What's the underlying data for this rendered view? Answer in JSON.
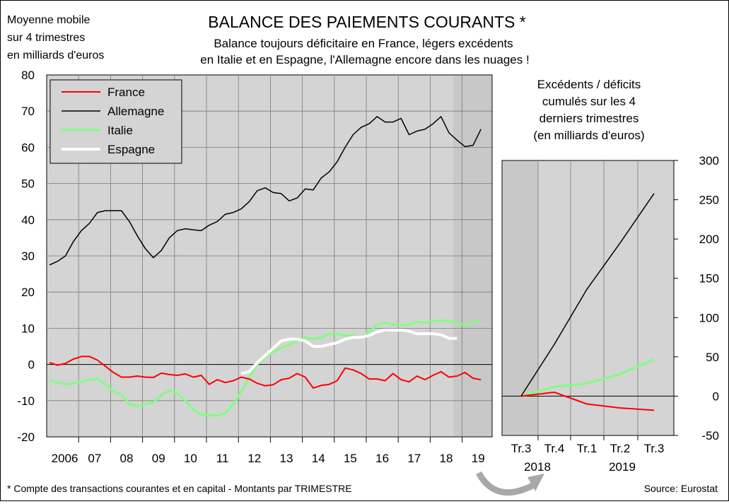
{
  "header": {
    "title": "BALANCE DES PAIEMENTS COURANTS *",
    "subtitle_line1": "Balance toujours déficitaire en France, légers excédents",
    "subtitle_line2": "en Italie et en Espagne, l'Allemagne encore dans les nuages !",
    "unit_line1": "Moyenne mobile",
    "unit_line2": "sur 4 trimestres",
    "unit_line3": "en milliards d'euros"
  },
  "footer": {
    "note": "* Compte des transactions courantes et en capital - Montants par TRIMESTRE",
    "source": "Source: Eurostat"
  },
  "colors": {
    "France": "#ff0000",
    "Allemagne": "#000000",
    "Italie": "#80ff80",
    "Espagne": "#ffffff",
    "plot_bg": "#d4d4d4",
    "plot_bg_shaded": "#c8c8c8"
  },
  "chart_data": [
    {
      "type": "line",
      "ylim": [
        -20,
        80
      ],
      "yticks": [
        "-20",
        "-10",
        "0",
        "10",
        "20",
        "30",
        "40",
        "50",
        "60",
        "70",
        "80"
      ],
      "xticks": [
        "2006",
        "07",
        "08",
        "09",
        "10",
        "11",
        "12",
        "13",
        "14",
        "15",
        "16",
        "17",
        "18",
        "19"
      ],
      "x_start": 2006,
      "legend_position": "top-left",
      "grid": "horizontal",
      "series": [
        {
          "name": "France",
          "values": [
            0.5,
            -0.2,
            0.3,
            1.5,
            2.2,
            2.2,
            1.2,
            -0.5,
            -2.2,
            -3.5,
            -3.5,
            -3.2,
            -3.5,
            -3.6,
            -2.4,
            -2.8,
            -3,
            -2.6,
            -3.5,
            -3,
            -5.5,
            -4.2,
            -5,
            -4.5,
            -3.5,
            -4,
            -5.2,
            -5.9,
            -5.6,
            -4.2,
            -3.8,
            -2.5,
            -3.5,
            -6.5,
            -5.8,
            -5.5,
            -4.5,
            -1,
            -1.5,
            -2.5,
            -4,
            -4,
            -4.5,
            -2.5,
            -4.2,
            -4.8,
            -3.2,
            -4.2,
            -3,
            -2,
            -3.5,
            -3.2,
            -2.2,
            -3.8,
            -4.2
          ]
        },
        {
          "name": "Allemagne",
          "values": [
            27.5,
            28.5,
            30,
            34,
            37,
            39,
            42,
            42.5,
            42.5,
            42.5,
            39.5,
            35.5,
            32,
            29.5,
            31.5,
            35,
            37,
            37.5,
            37.2,
            37,
            38.5,
            39.5,
            41.5,
            42,
            43,
            45,
            48,
            48.8,
            47.5,
            47.2,
            45.2,
            46,
            48.5,
            48.2,
            51.5,
            53.2,
            56,
            60,
            63.5,
            65.5,
            66.5,
            68.5,
            67,
            67,
            68,
            63.5,
            64.5,
            65,
            66.5,
            68.5,
            64,
            62,
            60.2,
            60.5,
            65
          ]
        },
        {
          "name": "Italie",
          "values": [
            -4.5,
            -5,
            -5.5,
            -5.2,
            -4.8,
            -4.2,
            -4,
            -5.5,
            -7.5,
            -8.2,
            -11,
            -11.5,
            -11,
            -10.5,
            -8.5,
            -7.2,
            -8,
            -10,
            -12.5,
            -13.8,
            -14,
            -14.2,
            -13.5,
            -11,
            -7.5,
            -3.5,
            0,
            2,
            3.5,
            4.5,
            5.5,
            6.5,
            7.5,
            7,
            7.5,
            8.5,
            8.5,
            8,
            8,
            7.5,
            9,
            11,
            11.5,
            11,
            10.8,
            11,
            11.8,
            11.5,
            12,
            12.2,
            12,
            11.2,
            11,
            11.5,
            12
          ]
        },
        {
          "name": "Espagne",
          "values": [
            null,
            null,
            null,
            null,
            null,
            null,
            null,
            null,
            null,
            null,
            null,
            null,
            null,
            null,
            null,
            null,
            null,
            null,
            null,
            null,
            null,
            null,
            null,
            null,
            -2.5,
            -2,
            0.5,
            2.5,
            4.5,
            6.5,
            7,
            7,
            6.5,
            5,
            5,
            5.5,
            6,
            7,
            7.5,
            7.5,
            8,
            9,
            9.5,
            9.5,
            9.5,
            9.2,
            8.5,
            8.5,
            8.5,
            8.2,
            7.2,
            7.2,
            null,
            null,
            null
          ]
        }
      ]
    },
    {
      "type": "line",
      "title_line1": "Excédents / déficits",
      "title_line2": "cumulés sur les 4",
      "title_line3": "derniers trimestres",
      "title_line4": "(en milliards d'euros)",
      "ylim": [
        -50,
        300
      ],
      "yticks": [
        "300",
        "250",
        "200",
        "150",
        "100",
        "50",
        "0",
        "-50"
      ],
      "categories": [
        "Tr.3",
        "Tr.4",
        "Tr.1",
        "Tr.2",
        "Tr.3"
      ],
      "year_labels": [
        "2018",
        "2019"
      ],
      "series": [
        {
          "name": "France",
          "values": [
            0,
            5,
            -10,
            -15,
            -18
          ]
        },
        {
          "name": "Allemagne",
          "values": [
            0,
            66,
            136,
            195,
            258
          ]
        },
        {
          "name": "Italie",
          "values": [
            0,
            12,
            16,
            28,
            47
          ]
        }
      ]
    }
  ]
}
